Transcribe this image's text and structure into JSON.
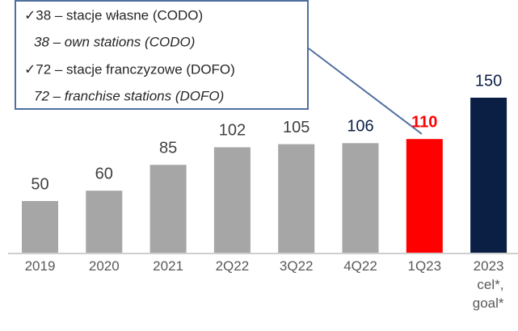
{
  "chart_data": {
    "type": "bar",
    "categories": [
      "2019",
      "2020",
      "2021",
      "2Q22",
      "3Q22",
      "4Q22",
      "1Q23",
      "2023\ncel*,\ngoal*"
    ],
    "values": [
      50,
      60,
      85,
      102,
      105,
      106,
      110,
      150
    ],
    "colors": [
      "#a6a6a6",
      "#a6a6a6",
      "#a6a6a6",
      "#a6a6a6",
      "#a6a6a6",
      "#a6a6a6",
      "#ff0000",
      "#0b1f45"
    ],
    "label_colors": [
      "#404040",
      "#404040",
      "#404040",
      "#404040",
      "#404040",
      "#0b1f45",
      "#ff0000",
      "#0b1f45"
    ],
    "annotation": [
      "✓38 – stacje własne (CODO)",
      "38 – own stations (CODO)",
      "✓72 – stacje franczyzowe (DOFO)",
      "72 – franchise stations (DOFO)"
    ]
  }
}
